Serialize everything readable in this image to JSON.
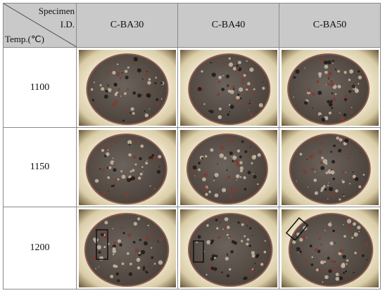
{
  "header": {
    "corner": {
      "specimen": "Specimen",
      "id": "I.D.",
      "temp": "Temp.(℃)"
    },
    "columns": [
      "C-BA30",
      "C-BA40",
      "C-BA50"
    ]
  },
  "rows": [
    {
      "label": "1100"
    },
    {
      "label": "1150"
    },
    {
      "label": "1200"
    }
  ]
}
